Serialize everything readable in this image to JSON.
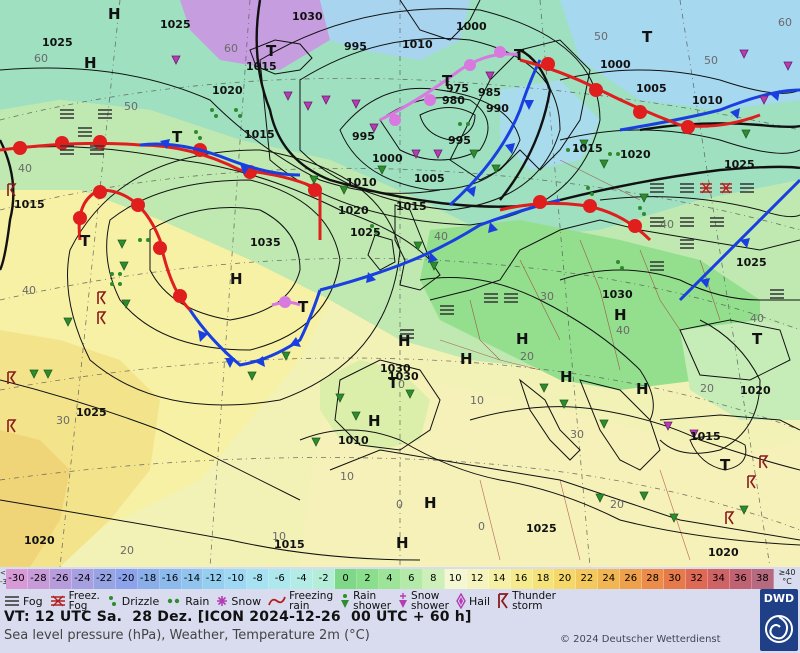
{
  "map": {
    "isobar_labels": [
      "1025",
      "1030",
      "1025",
      "1015",
      "1010",
      "1000",
      "995",
      "995",
      "985",
      "975",
      "980",
      "990",
      "995",
      "1000",
      "1005",
      "1010",
      "1015",
      "1020",
      "1015",
      "1000",
      "1015",
      "1010",
      "1005",
      "1020",
      "1025",
      "1025",
      "1035",
      "1015",
      "1030",
      "1020",
      "1030",
      "1025",
      "1025",
      "1020",
      "1015",
      "1020",
      "1015",
      "1025",
      "1020",
      "1010",
      "1030"
    ],
    "pressure_centers": [
      "H",
      "H",
      "H",
      "H",
      "H",
      "H",
      "H",
      "H",
      "H",
      "H",
      "H",
      "H",
      "T",
      "T",
      "T",
      "T",
      "T",
      "T",
      "T",
      "T",
      "T",
      "T"
    ],
    "temperature_labels": [
      "60",
      "50",
      "60",
      "40",
      "40",
      "30",
      "20",
      "10",
      "0",
      "0",
      "20",
      "40",
      "40",
      "50",
      "50",
      "60",
      "40",
      "30",
      "20",
      "10",
      "0",
      "40",
      "30",
      "20",
      "10"
    ]
  },
  "scale": {
    "lt": "<\n-30",
    "ge": "≥40\n°C",
    "cells": [
      {
        "v": "-30",
        "c": "#d79ad6"
      },
      {
        "v": "-28",
        "c": "#c79ad8"
      },
      {
        "v": "-26",
        "c": "#b79cdc"
      },
      {
        "v": "-24",
        "c": "#a7a0e0"
      },
      {
        "v": "-22",
        "c": "#97a4e4"
      },
      {
        "v": "-20",
        "c": "#8ca2ea"
      },
      {
        "v": "-18",
        "c": "#8aaee8"
      },
      {
        "v": "-16",
        "c": "#8cbaec"
      },
      {
        "v": "-14",
        "c": "#90c4ee"
      },
      {
        "v": "-12",
        "c": "#96cef0"
      },
      {
        "v": "-10",
        "c": "#9ed8f2"
      },
      {
        "v": "-8",
        "c": "#a6e2f2"
      },
      {
        "v": "-6",
        "c": "#ade8ec"
      },
      {
        "v": "-4",
        "c": "#b2ece4"
      },
      {
        "v": "-2",
        "c": "#b4eed8"
      },
      {
        "v": "0",
        "c": "#7ed887"
      },
      {
        "v": "2",
        "c": "#8ade8c"
      },
      {
        "v": "4",
        "c": "#9ee498"
      },
      {
        "v": "6",
        "c": "#b4eaa8"
      },
      {
        "v": "8",
        "c": "#cdf0b8"
      },
      {
        "v": "10",
        "c": "#f4f7d2"
      },
      {
        "v": "12",
        "c": "#f6f4be"
      },
      {
        "v": "14",
        "c": "#f5f0a4"
      },
      {
        "v": "16",
        "c": "#f6eb8c"
      },
      {
        "v": "18",
        "c": "#f5e37a"
      },
      {
        "v": "20",
        "c": "#f5d868"
      },
      {
        "v": "22",
        "c": "#f3c85c"
      },
      {
        "v": "24",
        "c": "#f1b652"
      },
      {
        "v": "26",
        "c": "#efa04a"
      },
      {
        "v": "28",
        "c": "#ec8c48"
      },
      {
        "v": "30",
        "c": "#e77a4a"
      },
      {
        "v": "32",
        "c": "#de6a55"
      },
      {
        "v": "34",
        "c": "#cf6264"
      },
      {
        "v": "36",
        "c": "#c06272"
      },
      {
        "v": "38",
        "c": "#b56a80"
      }
    ]
  },
  "legend": {
    "fog": "Fog",
    "freezing_fog": "Freez.\nFog",
    "drizzle": "Drizzle",
    "rain": "Rain",
    "snow": "Snow",
    "freezing_rain": "Freezing\nrain",
    "rain_shower": "Rain\nshower",
    "snow_shower": "Snow\nshower",
    "hail": "Hail",
    "thunderstorm": "Thunder\nstorm"
  },
  "footer": {
    "valid_time": "VT: 12 UTC Sa.  28 Dez. [ICON 2024-12-26  00 UTC + 60 h]",
    "description": "Sea level pressure (hPa), Weather, Temperature 2m (°C)",
    "copyright": "© 2024 Deutscher Wetterdienst",
    "logo": "DWD"
  },
  "colors": {
    "warm_front": "#e01e1e",
    "cold_front": "#1a3fe0",
    "occlusion": "#d879e0",
    "logo_bg": "#1f3f86",
    "footer_bg": "#d8dcee"
  }
}
